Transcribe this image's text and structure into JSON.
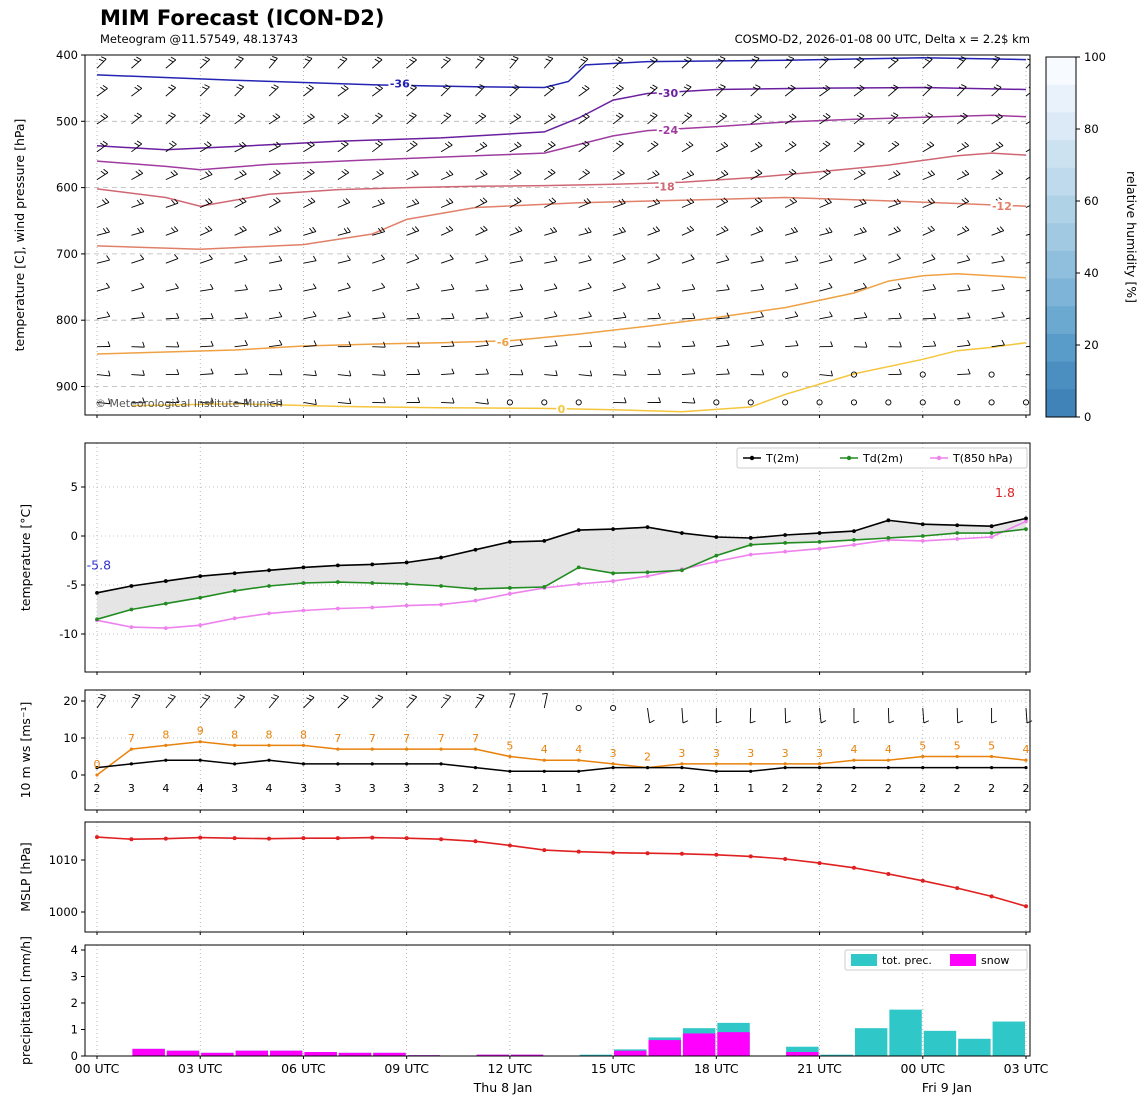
{
  "header": {
    "title": "MIM Forecast (ICON-D2)",
    "subtitle": "Meteogram @11.57549, 48.13743",
    "model_info": "COSMO-D2, 2026-01-08 00 UTC, Delta x = 2.2$ km"
  },
  "axis": {
    "hours_span": 27,
    "x_tick_hours": [
      0,
      3,
      6,
      9,
      12,
      15,
      18,
      21,
      24,
      27
    ],
    "x_tick_labels": [
      "00 UTC",
      "03 UTC",
      "06 UTC",
      "09 UTC",
      "12 UTC",
      "15 UTC",
      "18 UTC",
      "21 UTC",
      "00 UTC",
      "03 UTC"
    ],
    "day_labels": [
      {
        "label": "Thu 8 Jan",
        "hour": 11.8
      },
      {
        "label": "Fri 9 Jan",
        "hour": 24.7
      }
    ]
  },
  "chart_data": [
    {
      "id": "upper_air",
      "type": "contour",
      "ylabel": "temperature [C], wind pressure [hPa]",
      "y_ticks": [
        400,
        500,
        600,
        700,
        800,
        900
      ],
      "ylim": [
        400,
        943
      ],
      "copyright": "© Meteorological Institute Munich",
      "contours": [
        {
          "label": "-36",
          "color": "#2424b4",
          "label_at": [
            8.8,
            443
          ],
          "points": [
            [
              0,
              430
            ],
            [
              4,
              438
            ],
            [
              8,
              445
            ],
            [
              11,
              448
            ],
            [
              13,
              449
            ],
            [
              13.7,
              440
            ],
            [
              14.2,
              415
            ],
            [
              16,
              410
            ],
            [
              20,
              408
            ],
            [
              24,
              404
            ],
            [
              27,
              407
            ]
          ]
        },
        {
          "label": "-30",
          "color": "#6a1f9e",
          "label_at": [
            16.6,
            457
          ],
          "points": [
            [
              0,
              537
            ],
            [
              2,
              543
            ],
            [
              4,
              538
            ],
            [
              7,
              530
            ],
            [
              10,
              525
            ],
            [
              13,
              516
            ],
            [
              14,
              495
            ],
            [
              15,
              468
            ],
            [
              16,
              458
            ],
            [
              18,
              452
            ],
            [
              21,
              450
            ],
            [
              24,
              449
            ],
            [
              27,
              452
            ]
          ]
        },
        {
          "label": "-24",
          "color": "#a03ca0",
          "label_at": [
            16.6,
            513
          ],
          "points": [
            [
              0,
              560
            ],
            [
              2,
              568
            ],
            [
              3,
              573
            ],
            [
              5,
              565
            ],
            [
              8,
              558
            ],
            [
              11,
              552
            ],
            [
              13,
              548
            ],
            [
              14,
              535
            ],
            [
              15,
              522
            ],
            [
              16,
              514
            ],
            [
              18,
              508
            ],
            [
              20,
              501
            ],
            [
              22,
              497
            ],
            [
              24,
              494
            ],
            [
              26,
              491
            ],
            [
              27,
              493
            ]
          ]
        },
        {
          "label": "-18",
          "color": "#cf6673",
          "label_at": [
            16.5,
            598
          ],
          "points": [
            [
              0,
              602
            ],
            [
              2,
              615
            ],
            [
              3,
              628
            ],
            [
              5,
              610
            ],
            [
              7,
              603
            ],
            [
              9,
              600
            ],
            [
              11,
              598
            ],
            [
              13,
              597
            ],
            [
              15,
              595
            ],
            [
              17,
              592
            ],
            [
              19,
              585
            ],
            [
              21,
              576
            ],
            [
              23,
              566
            ],
            [
              25,
              552
            ],
            [
              26,
              548
            ],
            [
              27,
              551
            ]
          ]
        },
        {
          "label": "-12",
          "color": "#e0806a",
          "label_at": [
            26.3,
            628
          ],
          "points": [
            [
              0,
              688
            ],
            [
              3,
              693
            ],
            [
              6,
              686
            ],
            [
              8,
              670
            ],
            [
              9,
              648
            ],
            [
              11,
              630
            ],
            [
              14,
              623
            ],
            [
              17,
              619
            ],
            [
              20,
              615
            ],
            [
              23,
              620
            ],
            [
              25,
              624
            ],
            [
              27,
              628
            ]
          ]
        },
        {
          "label": "-6",
          "color": "#efa143",
          "label_at": [
            11.8,
            833
          ],
          "points": [
            [
              0,
              851
            ],
            [
              2,
              848
            ],
            [
              4,
              845
            ],
            [
              6,
              839
            ],
            [
              8,
              836
            ],
            [
              10,
              834
            ],
            [
              12,
              831
            ],
            [
              14,
              821
            ],
            [
              16,
              809
            ],
            [
              18,
              796
            ],
            [
              20,
              781
            ],
            [
              22,
              759
            ],
            [
              23,
              741
            ],
            [
              24,
              733
            ],
            [
              25,
              730
            ],
            [
              26,
              733
            ],
            [
              27,
              736
            ]
          ]
        },
        {
          "label": "0",
          "color": "#f5c63c",
          "label_at": [
            13.5,
            934
          ],
          "points": [
            [
              1,
              929
            ],
            [
              4,
              926
            ],
            [
              7,
              930
            ],
            [
              10,
              932
            ],
            [
              13,
              933
            ],
            [
              15,
              935
            ],
            [
              17,
              938
            ],
            [
              19,
              931
            ],
            [
              20,
              912
            ],
            [
              22,
              881
            ],
            [
              24,
              859
            ],
            [
              25,
              846
            ],
            [
              26,
              841
            ],
            [
              27,
              834
            ]
          ]
        }
      ],
      "barb_rows_hpa": [
        420,
        462,
        504,
        546,
        588,
        630,
        672,
        714,
        756,
        798,
        840,
        882,
        924
      ],
      "calm_circles": [
        {
          "p": 924,
          "hours": [
            12,
            13,
            14,
            18,
            19,
            20,
            21,
            22,
            23,
            24,
            25,
            26,
            27
          ]
        },
        {
          "p": 882,
          "hours": [
            20,
            22,
            24,
            26
          ]
        }
      ],
      "colorbar": {
        "label": "relative humidity [%]",
        "ticks": [
          0,
          20,
          40,
          60,
          80,
          100
        ],
        "colors_top_to_bottom": [
          "#f7fbff",
          "#e9f2fa",
          "#dbeaf6",
          "#cde2f1",
          "#bfdaec",
          "#b0d2e7",
          "#a1c9e2",
          "#90bfdd",
          "#7eb4d7",
          "#6ba9d1",
          "#5a9cc9",
          "#4b8fc0",
          "#4083b8"
        ]
      }
    },
    {
      "id": "temperature",
      "type": "line",
      "ylabel": "temperature [°C]",
      "y_ticks": [
        -10,
        -5,
        0,
        5
      ],
      "ylim": [
        -13.9,
        9.5
      ],
      "legend": [
        "T(2m)",
        "Td(2m)",
        "T(850 hPa)"
      ],
      "series": [
        {
          "name": "T(2m)",
          "color": "#000000",
          "values": [
            -5.8,
            -5.1,
            -4.6,
            -4.1,
            -3.8,
            -3.5,
            -3.2,
            -3.0,
            -2.9,
            -2.7,
            -2.2,
            -1.4,
            -0.6,
            -0.5,
            0.6,
            0.7,
            0.9,
            0.3,
            -0.1,
            -0.2,
            0.1,
            0.3,
            0.5,
            1.6,
            1.2,
            1.1,
            1.0,
            1.8
          ]
        },
        {
          "name": "Td(2m)",
          "color": "#228b22",
          "values": [
            -8.5,
            -7.5,
            -6.9,
            -6.3,
            -5.6,
            -5.1,
            -4.8,
            -4.7,
            -4.8,
            -4.9,
            -5.1,
            -5.4,
            -5.3,
            -5.2,
            -3.2,
            -3.8,
            -3.7,
            -3.5,
            -2.0,
            -0.9,
            -0.7,
            -0.6,
            -0.4,
            -0.2,
            0.0,
            0.3,
            0.3,
            0.7
          ]
        },
        {
          "name": "T(850 hPa)",
          "color": "#ee82ee",
          "values": [
            -8.6,
            -9.3,
            -9.4,
            -9.1,
            -8.4,
            -7.9,
            -7.6,
            -7.4,
            -7.3,
            -7.1,
            -7.0,
            -6.6,
            -5.9,
            -5.3,
            -4.9,
            -4.6,
            -4.1,
            -3.4,
            -2.6,
            -1.9,
            -1.6,
            -1.3,
            -0.9,
            -0.4,
            -0.5,
            -0.3,
            -0.1,
            1.5
          ]
        }
      ],
      "annotations": [
        {
          "text": "-5.8",
          "color": "#3333cc",
          "hour": -0.3,
          "value": -3.4
        },
        {
          "text": "1.8",
          "color": "#dd2222",
          "hour": 26.1,
          "value": 4.0
        }
      ]
    },
    {
      "id": "wind_10m",
      "type": "line",
      "ylabel": "10 m ws [ms⁻¹]",
      "y_ticks": [
        0,
        10,
        20
      ],
      "ylim": [
        -9.5,
        23
      ],
      "series": [
        {
          "name": "wind speed",
          "color": "#000000",
          "values": [
            2,
            3,
            4,
            4,
            3,
            4,
            3,
            3,
            3,
            3,
            3,
            2,
            1,
            1,
            1,
            2,
            2,
            2,
            1,
            1,
            2,
            2,
            2,
            2,
            2,
            2,
            2,
            2
          ]
        },
        {
          "name": "wind gust",
          "color": "#e8820c",
          "values": [
            0,
            7,
            8,
            9,
            8,
            8,
            8,
            7,
            7,
            7,
            7,
            7,
            5,
            4,
            4,
            3,
            2,
            3,
            3,
            3,
            3,
            3,
            4,
            4,
            5,
            5,
            5,
            4
          ]
        }
      ],
      "barb_angles_deg": [
        -55,
        -55,
        -50,
        -50,
        -48,
        -50,
        -45,
        -45,
        -45,
        -48,
        -50,
        -55,
        -70,
        -78,
        null,
        null,
        82,
        86,
        90,
        92,
        88,
        84,
        90,
        88,
        86,
        88,
        90,
        86
      ]
    },
    {
      "id": "mslp",
      "type": "line",
      "ylabel": "MSLP [hPa]",
      "y_ticks": [
        1000,
        1010
      ],
      "ylim": [
        996,
        1017.5
      ],
      "series": [
        {
          "name": "MSLP",
          "color": "#e02020",
          "values": [
            1014.4,
            1014.0,
            1014.1,
            1014.3,
            1014.2,
            1014.1,
            1014.2,
            1014.2,
            1014.3,
            1014.2,
            1014.0,
            1013.6,
            1012.8,
            1011.9,
            1011.6,
            1011.4,
            1011.3,
            1011.2,
            1011.0,
            1010.7,
            1010.2,
            1009.4,
            1008.5,
            1007.3,
            1006.0,
            1004.6,
            1003.0,
            1001.1
          ]
        }
      ]
    },
    {
      "id": "precipitation",
      "type": "bar",
      "ylabel": "precipitation [mm/h]",
      "y_ticks": [
        0,
        1,
        2,
        3,
        4
      ],
      "ylim": [
        0,
        4
      ],
      "legend": [
        "tot. prec.",
        "snow"
      ],
      "series": [
        {
          "name": "tot. prec.",
          "color": "#2fc7c7",
          "values": [
            0,
            0.27,
            0.2,
            0.12,
            0.2,
            0.2,
            0.15,
            0.12,
            0.12,
            0.03,
            0,
            0.05,
            0.05,
            0,
            0.05,
            0.25,
            0.7,
            1.05,
            1.25,
            0,
            0.35,
            0.05,
            1.05,
            1.75,
            0.95,
            0.65,
            1.3
          ]
        },
        {
          "name": "snow",
          "color": "#ff00ff",
          "values": [
            0,
            0.27,
            0.2,
            0.12,
            0.2,
            0.2,
            0.15,
            0.12,
            0.12,
            0.03,
            0,
            0.05,
            0.05,
            0,
            0,
            0.2,
            0.6,
            0.85,
            0.9,
            0,
            0.15,
            0,
            0,
            0,
            0,
            0,
            0
          ]
        }
      ]
    }
  ]
}
